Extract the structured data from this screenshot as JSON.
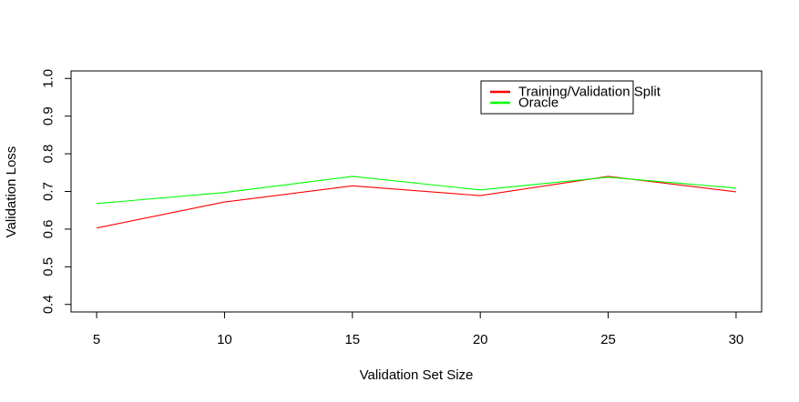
{
  "chart_data": {
    "type": "line",
    "title": "",
    "xlabel": "Validation Set Size",
    "ylabel": "Validation Loss",
    "x": [
      5,
      10,
      15,
      20,
      25,
      30
    ],
    "xticks": [
      5,
      10,
      15,
      20,
      25,
      30
    ],
    "xlim": [
      4,
      31
    ],
    "yticks": [
      0.4,
      0.5,
      0.6,
      0.7,
      0.8,
      0.9,
      1.0
    ],
    "ylim": [
      0.38,
      1.02
    ],
    "grid": false,
    "legend_position": "top-right",
    "series": [
      {
        "name": "Training/Validation Split",
        "color": "#ff0000",
        "values": [
          0.603,
          0.672,
          0.715,
          0.689,
          0.74,
          0.699
        ]
      },
      {
        "name": "Oracle",
        "color": "#00ff00",
        "values": [
          0.668,
          0.697,
          0.74,
          0.704,
          0.738,
          0.709
        ]
      }
    ]
  }
}
